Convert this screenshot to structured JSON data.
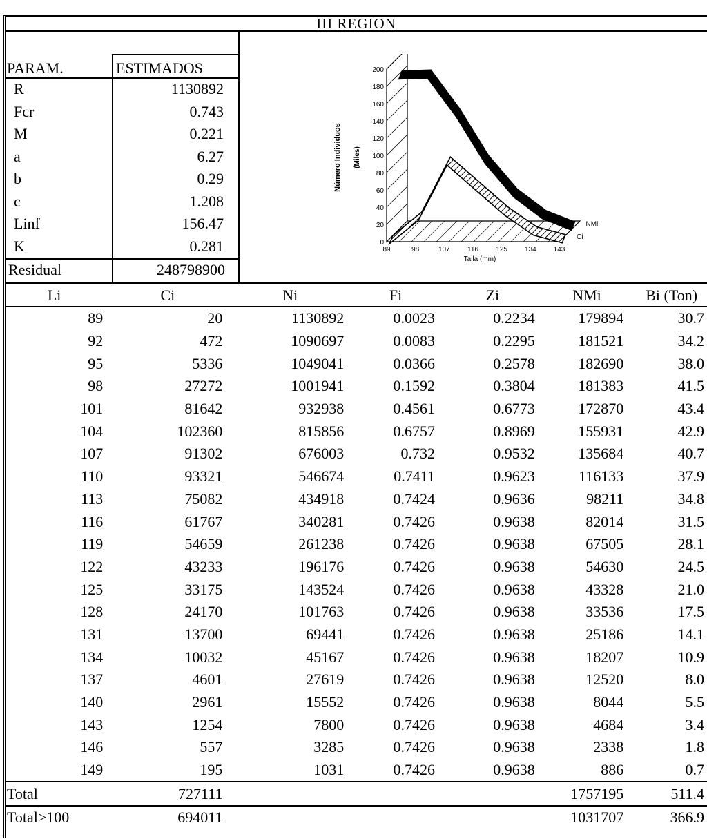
{
  "title": "III REGION",
  "params_header": {
    "param": "PARAM.",
    "estimados": "ESTIMADOS"
  },
  "params": [
    {
      "name": "R",
      "value": "1130892"
    },
    {
      "name": "Fcr",
      "value": "0.743"
    },
    {
      "name": "M",
      "value": "0.221"
    },
    {
      "name": "a",
      "value": "6.27"
    },
    {
      "name": "b",
      "value": "0.29"
    },
    {
      "name": "c",
      "value": "1.208"
    },
    {
      "name": "Linf",
      "value": "156.47"
    },
    {
      "name": "K",
      "value": "0.281"
    }
  ],
  "residual": {
    "name": "Residual",
    "value": "248798900"
  },
  "chart_data": {
    "type": "area",
    "ylabel": "Número Individuos",
    "ylabel_unit": "(Miles)",
    "xlabel": "Talla (mm)",
    "ylim": [
      0,
      200
    ],
    "yticks": [
      "0",
      "20",
      "40",
      "60",
      "80",
      "100",
      "120",
      "140",
      "160",
      "180",
      "200"
    ],
    "x": [
      "89",
      "98",
      "107",
      "116",
      "125",
      "134",
      "143"
    ],
    "series": [
      {
        "name": "NMi",
        "values": [
          180,
          181,
          136,
          82,
          43,
          18,
          5
        ]
      },
      {
        "name": "Ci",
        "values": [
          0,
          27,
          91,
          62,
          33,
          10,
          1
        ]
      }
    ]
  },
  "table": {
    "headers": [
      "Li",
      "Ci",
      "Ni",
      "Fi",
      "Zi",
      "NMi",
      "Bi (Ton)"
    ],
    "rows": [
      [
        "89",
        "20",
        "1130892",
        "0.0023",
        "0.2234",
        "179894",
        "30.7"
      ],
      [
        "92",
        "472",
        "1090697",
        "0.0083",
        "0.2295",
        "181521",
        "34.2"
      ],
      [
        "95",
        "5336",
        "1049041",
        "0.0366",
        "0.2578",
        "182690",
        "38.0"
      ],
      [
        "98",
        "27272",
        "1001941",
        "0.1592",
        "0.3804",
        "181383",
        "41.5"
      ],
      [
        "101",
        "81642",
        "932938",
        "0.4561",
        "0.6773",
        "172870",
        "43.4"
      ],
      [
        "104",
        "102360",
        "815856",
        "0.6757",
        "0.8969",
        "155931",
        "42.9"
      ],
      [
        "107",
        "91302",
        "676003",
        "0.732",
        "0.9532",
        "135684",
        "40.7"
      ],
      [
        "110",
        "93321",
        "546674",
        "0.7411",
        "0.9623",
        "116133",
        "37.9"
      ],
      [
        "113",
        "75082",
        "434918",
        "0.7424",
        "0.9636",
        "98211",
        "34.8"
      ],
      [
        "116",
        "61767",
        "340281",
        "0.7426",
        "0.9638",
        "82014",
        "31.5"
      ],
      [
        "119",
        "54659",
        "261238",
        "0.7426",
        "0.9638",
        "67505",
        "28.1"
      ],
      [
        "122",
        "43233",
        "196176",
        "0.7426",
        "0.9638",
        "54630",
        "24.5"
      ],
      [
        "125",
        "33175",
        "143524",
        "0.7426",
        "0.9638",
        "43328",
        "21.0"
      ],
      [
        "128",
        "24170",
        "101763",
        "0.7426",
        "0.9638",
        "33536",
        "17.5"
      ],
      [
        "131",
        "13700",
        "69441",
        "0.7426",
        "0.9638",
        "25186",
        "14.1"
      ],
      [
        "134",
        "10032",
        "45167",
        "0.7426",
        "0.9638",
        "18207",
        "10.9"
      ],
      [
        "137",
        "4601",
        "27619",
        "0.7426",
        "0.9638",
        "12520",
        "8.0"
      ],
      [
        "140",
        "2961",
        "15552",
        "0.7426",
        "0.9638",
        "8044",
        "5.5"
      ],
      [
        "143",
        "1254",
        "7800",
        "0.7426",
        "0.9638",
        "4684",
        "3.4"
      ],
      [
        "146",
        "557",
        "3285",
        "0.7426",
        "0.9638",
        "2338",
        "1.8"
      ],
      [
        "149",
        "195",
        "1031",
        "0.7426",
        "0.9638",
        "886",
        "0.7"
      ]
    ],
    "totals": [
      {
        "label": "Total",
        "ci": "727111",
        "nmi": "1757195",
        "bi": "511.4"
      },
      {
        "label": "Total>100",
        "ci": "694011",
        "nmi": "1031707",
        "bi": "366.9"
      }
    ]
  }
}
